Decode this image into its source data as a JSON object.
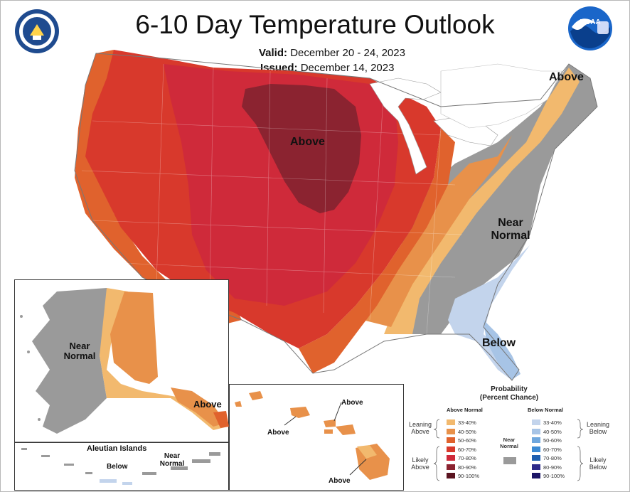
{
  "title": "6-10 Day Temperature Outlook",
  "valid_label": "Valid:",
  "valid_dates": "December 20 - 24, 2023",
  "issued_label": "Issued:",
  "issued_date": "December 14, 2023",
  "map_labels": {
    "above_ne": "Above",
    "above_center": "Above",
    "near_normal_1": "Near",
    "near_normal_2": "Normal",
    "below_fl": "Below"
  },
  "alaska": {
    "near_1": "Near",
    "near_2": "Normal",
    "above": "Above"
  },
  "aleutian": {
    "title": "Aleutian Islands",
    "below": "Below",
    "near_1": "Near",
    "near_2": "Normal"
  },
  "hawaii": {
    "above_1": "Above",
    "above_2": "Above",
    "above_3": "Above"
  },
  "legend": {
    "title_1": "Probability",
    "title_2": "(Percent Chance)",
    "above_header": "Above Normal",
    "below_header": "Below Normal",
    "near_1": "Near",
    "near_2": "Normal",
    "leaning_above_1": "Leaning",
    "leaning_above_2": "Above",
    "likely_above_1": "Likely",
    "likely_above_2": "Above",
    "leaning_below_1": "Leaning",
    "leaning_below_2": "Below",
    "likely_below_1": "Likely",
    "likely_below_2": "Below",
    "above_levels": [
      {
        "pct": "33-40%",
        "color": "#f2b96e"
      },
      {
        "pct": "40-50%",
        "color": "#e8914a"
      },
      {
        "pct": "50-60%",
        "color": "#e0622d"
      },
      {
        "pct": "60-70%",
        "color": "#d8392c"
      },
      {
        "pct": "70-80%",
        "color": "#cf2a3a"
      },
      {
        "pct": "80-90%",
        "color": "#8b2330"
      },
      {
        "pct": "90-100%",
        "color": "#5a1420"
      }
    ],
    "below_levels": [
      {
        "pct": "33-40%",
        "color": "#c3d4ec"
      },
      {
        "pct": "40-50%",
        "color": "#a7c4e6"
      },
      {
        "pct": "50-60%",
        "color": "#6fa7de"
      },
      {
        "pct": "60-70%",
        "color": "#3b8ad4"
      },
      {
        "pct": "70-80%",
        "color": "#1e5fb0"
      },
      {
        "pct": "80-90%",
        "color": "#2e2a8a"
      },
      {
        "pct": "90-100%",
        "color": "#1c1566"
      }
    ],
    "near_color": "#9a9a9a"
  }
}
